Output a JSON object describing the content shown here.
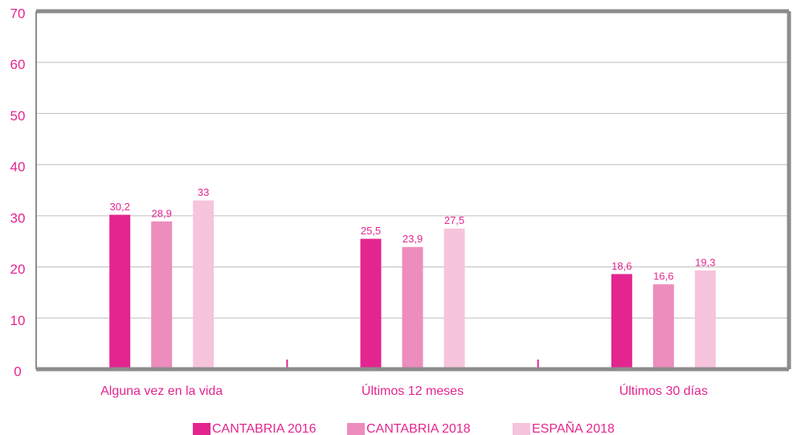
{
  "chart_data": {
    "type": "bar",
    "categories": [
      "Alguna vez en la vida",
      "Últimos 12 meses",
      "Últimos 30 días"
    ],
    "series": [
      {
        "name": "CANTABRIA 2016",
        "color": "#e4258f",
        "values": [
          30.2,
          25.5,
          18.6
        ],
        "value_labels": [
          "30,2",
          "25,5",
          "18,6"
        ]
      },
      {
        "name": "CANTABRIA 2018",
        "color": "#ec8dbd",
        "values": [
          28.9,
          23.9,
          16.6
        ],
        "value_labels": [
          "28,9",
          "23,9",
          "16,6"
        ]
      },
      {
        "name": "ESPAÑA 2018",
        "color": "#f6c4dc",
        "values": [
          33,
          27.5,
          19.3
        ],
        "value_labels": [
          "33",
          "27,5",
          "19,3"
        ]
      }
    ],
    "ylim": [
      0,
      70
    ],
    "yticks": [
      0,
      10,
      20,
      30,
      40,
      50,
      60,
      70
    ],
    "grid": true,
    "legend": "bottom"
  }
}
